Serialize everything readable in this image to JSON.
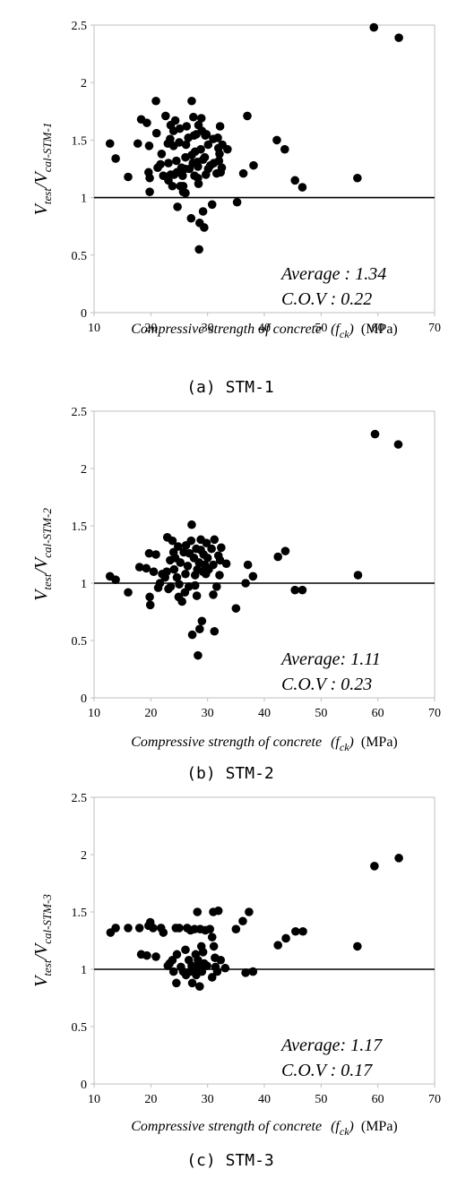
{
  "colors": {
    "axis": "#bfbfbf",
    "marker": "#000000",
    "reference": "#000000",
    "text": "#000000"
  },
  "chart_data": [
    {
      "type": "scatter",
      "caption": "(a) STM-1",
      "x_axis_label": {
        "pre": "Compressive strength of concrete",
        "var": "f",
        "sub": "ck",
        "unit": "(MPa)"
      },
      "y_axis_label": {
        "v1": "V",
        "sub1": "test",
        "slash": "/",
        "v2": "V",
        "sub2": "cal-STM-1"
      },
      "stats": {
        "average": "Average : 1.34",
        "cov": "C.O.V : 0.22"
      },
      "xlim": [
        10,
        70
      ],
      "ylim": [
        0,
        2.5
      ],
      "xticks": [
        "10",
        "20",
        "30",
        "40",
        "50",
        "60",
        "70"
      ],
      "yticks": [
        "0",
        "0.5",
        "1",
        "1.5",
        "2",
        "2.5"
      ],
      "reference_y": 1,
      "points": [
        [
          12.8,
          1.47
        ],
        [
          13.8,
          1.34
        ],
        [
          16.0,
          1.18
        ],
        [
          17.7,
          1.47
        ],
        [
          18.3,
          1.68
        ],
        [
          19.3,
          1.65
        ],
        [
          19.6,
          1.22
        ],
        [
          19.7,
          1.45
        ],
        [
          19.8,
          1.17
        ],
        [
          19.8,
          1.05
        ],
        [
          20.9,
          1.84
        ],
        [
          21.0,
          1.56
        ],
        [
          21.2,
          1.26
        ],
        [
          21.7,
          1.29
        ],
        [
          21.9,
          1.38
        ],
        [
          22.2,
          1.19
        ],
        [
          22.6,
          1.71
        ],
        [
          23.0,
          1.47
        ],
        [
          23.1,
          1.3
        ],
        [
          23.1,
          1.15
        ],
        [
          23.4,
          1.51
        ],
        [
          23.5,
          1.63
        ],
        [
          23.5,
          1.2
        ],
        [
          23.8,
          1.1
        ],
        [
          24.0,
          1.45
        ],
        [
          24.0,
          1.58
        ],
        [
          24.1,
          1.2
        ],
        [
          24.3,
          1.67
        ],
        [
          24.5,
          1.32
        ],
        [
          24.6,
          1.22
        ],
        [
          24.7,
          0.92
        ],
        [
          25.0,
          1.48
        ],
        [
          25.1,
          1.6
        ],
        [
          25.2,
          1.1
        ],
        [
          25.4,
          1.26
        ],
        [
          25.6,
          1.19
        ],
        [
          25.7,
          1.05
        ],
        [
          25.7,
          1.1
        ],
        [
          26.0,
          1.25
        ],
        [
          26.1,
          1.04
        ],
        [
          26.1,
          1.35
        ],
        [
          26.2,
          1.46
        ],
        [
          26.3,
          1.62
        ],
        [
          26.6,
          1.52
        ],
        [
          26.8,
          1.25
        ],
        [
          27.1,
          0.82
        ],
        [
          27.2,
          1.37
        ],
        [
          27.2,
          1.84
        ],
        [
          27.4,
          1.3
        ],
        [
          27.5,
          1.7
        ],
        [
          27.6,
          1.54
        ],
        [
          27.7,
          1.19
        ],
        [
          27.8,
          1.4
        ],
        [
          28.0,
          1.55
        ],
        [
          28.2,
          1.31
        ],
        [
          28.3,
          1.17
        ],
        [
          28.3,
          1.27
        ],
        [
          28.4,
          1.63
        ],
        [
          28.4,
          1.12
        ],
        [
          28.5,
          0.55
        ],
        [
          28.6,
          0.78
        ],
        [
          28.8,
          1.42
        ],
        [
          28.9,
          1.69
        ],
        [
          29.0,
          1.58
        ],
        [
          29.2,
          0.88
        ],
        [
          29.2,
          1.33
        ],
        [
          29.4,
          0.74
        ],
        [
          29.5,
          1.35
        ],
        [
          29.6,
          1.54
        ],
        [
          29.7,
          1.2
        ],
        [
          29.8,
          1.55
        ],
        [
          30.1,
          1.25
        ],
        [
          30.1,
          1.46
        ],
        [
          30.5,
          1.28
        ],
        [
          30.8,
          0.94
        ],
        [
          31.0,
          1.51
        ],
        [
          31.1,
          1.3
        ],
        [
          31.6,
          1.21
        ],
        [
          31.8,
          1.52
        ],
        [
          31.9,
          1.43
        ],
        [
          32.0,
          1.32
        ],
        [
          32.1,
          1.38
        ],
        [
          32.2,
          1.62
        ],
        [
          32.3,
          1.22
        ],
        [
          32.5,
          1.26
        ],
        [
          32.6,
          1.46
        ],
        [
          33.5,
          1.42
        ],
        [
          35.2,
          0.96
        ],
        [
          36.3,
          1.21
        ],
        [
          37.0,
          1.71
        ],
        [
          38.1,
          1.28
        ],
        [
          42.2,
          1.5
        ],
        [
          43.6,
          1.42
        ],
        [
          45.4,
          1.15
        ],
        [
          46.7,
          1.09
        ],
        [
          56.4,
          1.17
        ],
        [
          59.3,
          2.48
        ],
        [
          63.7,
          2.39
        ]
      ]
    },
    {
      "type": "scatter",
      "caption": "(b) STM-2",
      "x_axis_label": {
        "pre": "Compressive strength of concrete",
        "var": "f",
        "sub": "ck",
        "unit": "(MPa)"
      },
      "y_axis_label": {
        "v1": "V",
        "sub1": "test",
        "slash": "/",
        "v2": "V",
        "sub2": "cal-STM-2"
      },
      "stats": {
        "average": "Average: 1.11",
        "cov": "C.O.V : 0.23"
      },
      "xlim": [
        10,
        70
      ],
      "ylim": [
        0,
        2.5
      ],
      "xticks": [
        "10",
        "20",
        "30",
        "40",
        "50",
        "60",
        "70"
      ],
      "yticks": [
        "0",
        "0.5",
        "1",
        "1.5",
        "2",
        "2.5"
      ],
      "reference_y": 1,
      "points": [
        [
          12.8,
          1.06
        ],
        [
          13.8,
          1.03
        ],
        [
          16.0,
          0.92
        ],
        [
          18.0,
          1.14
        ],
        [
          19.2,
          1.13
        ],
        [
          19.7,
          1.26
        ],
        [
          19.8,
          0.88
        ],
        [
          19.9,
          0.81
        ],
        [
          20.5,
          1.1
        ],
        [
          20.9,
          1.25
        ],
        [
          21.3,
          0.96
        ],
        [
          21.6,
          1.0
        ],
        [
          22.0,
          1.08
        ],
        [
          22.5,
          1.05
        ],
        [
          22.8,
          1.1
        ],
        [
          22.9,
          1.4
        ],
        [
          23.1,
          0.95
        ],
        [
          23.4,
          1.2
        ],
        [
          23.5,
          0.97
        ],
        [
          23.8,
          1.37
        ],
        [
          24.0,
          1.27
        ],
        [
          24.1,
          1.12
        ],
        [
          24.3,
          1.22
        ],
        [
          24.6,
          1.05
        ],
        [
          24.8,
          1.32
        ],
        [
          24.9,
          0.88
        ],
        [
          25.0,
          0.99
        ],
        [
          25.2,
          1.18
        ],
        [
          25.5,
          0.84
        ],
        [
          25.8,
          1.27
        ],
        [
          26.0,
          0.92
        ],
        [
          26.1,
          1.08
        ],
        [
          26.2,
          1.33
        ],
        [
          26.5,
          1.15
        ],
        [
          26.7,
          0.97
        ],
        [
          26.8,
          1.26
        ],
        [
          27.1,
          1.37
        ],
        [
          27.2,
          1.51
        ],
        [
          27.3,
          0.55
        ],
        [
          27.6,
          1.22
        ],
        [
          27.8,
          1.07
        ],
        [
          27.8,
          0.98
        ],
        [
          28.0,
          1.3
        ],
        [
          28.1,
          0.89
        ],
        [
          28.2,
          1.12
        ],
        [
          28.3,
          0.37
        ],
        [
          28.5,
          1.18
        ],
        [
          28.6,
          0.6
        ],
        [
          28.8,
          1.29
        ],
        [
          28.8,
          1.38
        ],
        [
          29.0,
          0.67
        ],
        [
          29.2,
          1.1
        ],
        [
          29.3,
          1.25
        ],
        [
          29.5,
          1.16
        ],
        [
          29.7,
          1.08
        ],
        [
          29.8,
          1.35
        ],
        [
          30.0,
          1.22
        ],
        [
          30.2,
          1.12
        ],
        [
          30.7,
          1.3
        ],
        [
          31.0,
          0.9
        ],
        [
          31.0,
          1.16
        ],
        [
          31.2,
          0.58
        ],
        [
          31.2,
          1.38
        ],
        [
          31.6,
          0.97
        ],
        [
          31.9,
          1.24
        ],
        [
          32.1,
          1.07
        ],
        [
          32.2,
          1.2
        ],
        [
          32.4,
          1.31
        ],
        [
          33.3,
          1.17
        ],
        [
          35.0,
          0.78
        ],
        [
          36.7,
          1.0
        ],
        [
          37.1,
          1.16
        ],
        [
          38.0,
          1.06
        ],
        [
          42.4,
          1.23
        ],
        [
          43.7,
          1.28
        ],
        [
          45.4,
          0.94
        ],
        [
          46.7,
          0.94
        ],
        [
          56.5,
          1.07
        ],
        [
          59.5,
          2.3
        ],
        [
          63.6,
          2.21
        ]
      ]
    },
    {
      "type": "scatter",
      "caption": "(c) STM-3",
      "x_axis_label": {
        "pre": "Compressive strength of concrete",
        "var": "f",
        "sub": "ck",
        "unit": "(MPa)"
      },
      "y_axis_label": {
        "v1": "V",
        "sub1": "test",
        "slash": "/",
        "v2": "V",
        "sub2": "cal-STM-3"
      },
      "stats": {
        "average": "Average: 1.17",
        "cov": "C.O.V : 0.17"
      },
      "xlim": [
        10,
        70
      ],
      "ylim": [
        0,
        2.5
      ],
      "xticks": [
        "10",
        "20",
        "30",
        "40",
        "50",
        "60",
        "70"
      ],
      "yticks": [
        "0",
        "0.5",
        "1",
        "1.5",
        "2",
        "2.5"
      ],
      "reference_y": 1,
      "points": [
        [
          12.9,
          1.32
        ],
        [
          13.8,
          1.36
        ],
        [
          16.0,
          1.36
        ],
        [
          18.0,
          1.36
        ],
        [
          18.3,
          1.13
        ],
        [
          19.3,
          1.12
        ],
        [
          19.6,
          1.38
        ],
        [
          19.9,
          1.41
        ],
        [
          20.4,
          1.36
        ],
        [
          20.9,
          1.11
        ],
        [
          21.8,
          1.36
        ],
        [
          22.2,
          1.32
        ],
        [
          23.0,
          1.03
        ],
        [
          23.3,
          1.05
        ],
        [
          23.8,
          1.08
        ],
        [
          24.0,
          0.98
        ],
        [
          24.4,
          1.36
        ],
        [
          24.5,
          0.88
        ],
        [
          24.6,
          1.13
        ],
        [
          25.0,
          1.36
        ],
        [
          25.3,
          1.02
        ],
        [
          25.7,
          0.98
        ],
        [
          26.1,
          1.17
        ],
        [
          26.2,
          0.95
        ],
        [
          26.4,
          1.36
        ],
        [
          26.7,
          1.08
        ],
        [
          26.9,
          0.98
        ],
        [
          27.0,
          1.34
        ],
        [
          27.2,
          1.03
        ],
        [
          27.3,
          0.88
        ],
        [
          27.6,
          1.0
        ],
        [
          27.7,
          1.35
        ],
        [
          27.9,
          1.13
        ],
        [
          28.0,
          0.95
        ],
        [
          28.2,
          1.5
        ],
        [
          28.3,
          1.08
        ],
        [
          28.5,
          1.03
        ],
        [
          28.6,
          0.85
        ],
        [
          28.7,
          1.35
        ],
        [
          28.9,
          1.2
        ],
        [
          29.0,
          0.98
        ],
        [
          29.2,
          1.15
        ],
        [
          29.4,
          1.05
        ],
        [
          29.6,
          1.34
        ],
        [
          29.9,
          1.03
        ],
        [
          30.4,
          1.35
        ],
        [
          30.8,
          1.28
        ],
        [
          30.8,
          0.93
        ],
        [
          31.0,
          1.5
        ],
        [
          31.1,
          1.2
        ],
        [
          31.3,
          1.1
        ],
        [
          31.4,
          1.02
        ],
        [
          31.7,
          0.98
        ],
        [
          31.9,
          1.51
        ],
        [
          32.3,
          1.08
        ],
        [
          33.1,
          1.01
        ],
        [
          35.0,
          1.35
        ],
        [
          36.2,
          1.42
        ],
        [
          36.7,
          0.97
        ],
        [
          37.3,
          1.5
        ],
        [
          38.0,
          0.98
        ],
        [
          42.4,
          1.21
        ],
        [
          43.8,
          1.27
        ],
        [
          45.5,
          1.33
        ],
        [
          46.8,
          1.33
        ],
        [
          56.4,
          1.2
        ],
        [
          59.4,
          1.9
        ],
        [
          63.7,
          1.97
        ]
      ]
    }
  ]
}
